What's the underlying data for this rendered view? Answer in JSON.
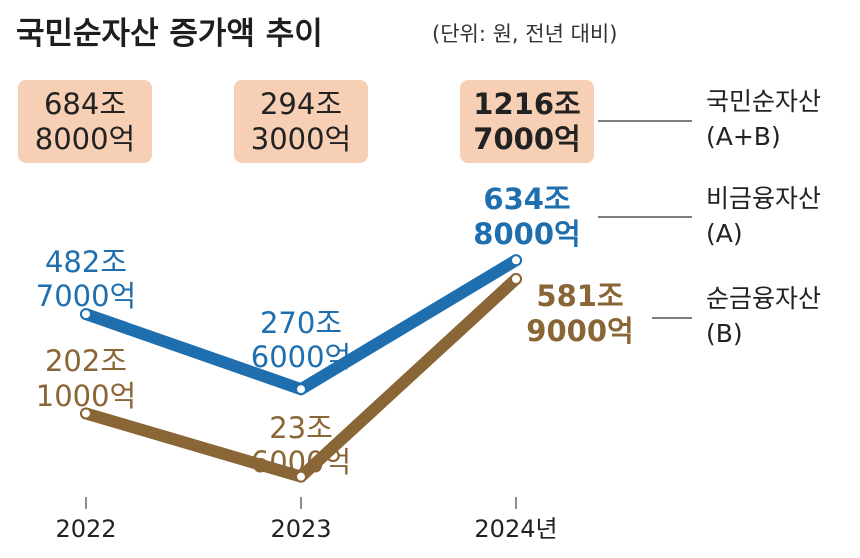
{
  "header": {
    "title": "국민순자산 증가액 추이",
    "unit": "(단위: 원, 전년 대비)"
  },
  "chart_data": {
    "type": "line",
    "x": [
      "2022",
      "2023",
      "2024년"
    ],
    "x_values": [
      2022,
      2023,
      2024
    ],
    "totals": {
      "labels": [
        [
          "684조",
          "8000억"
        ],
        [
          "294조",
          "3000억"
        ],
        [
          "1216조",
          "7000억"
        ]
      ],
      "values": [
        684.8,
        294.3,
        1216.7
      ],
      "color": "#f6cfb4"
    },
    "series": [
      {
        "name": "비금융자산",
        "sub": "(A)",
        "values": [
          482.7,
          270.6,
          634.8
        ],
        "labels": [
          [
            "482조",
            "7000억"
          ],
          [
            "270조",
            "6000억"
          ],
          [
            "634조",
            "8000억"
          ]
        ],
        "color": "#1f6faf"
      },
      {
        "name": "순금융자산",
        "sub": "(B)",
        "values": [
          202.1,
          23.6,
          581.9
        ],
        "labels": [
          [
            "202조",
            "1000억"
          ],
          [
            "23조",
            "6000억"
          ],
          [
            "581조",
            "9000억"
          ]
        ],
        "color": "#8a6535"
      }
    ],
    "total_legend": {
      "name": "국민순자산",
      "sub": "(A+B)"
    },
    "ylim": [
      0,
      700
    ],
    "grid": false
  }
}
